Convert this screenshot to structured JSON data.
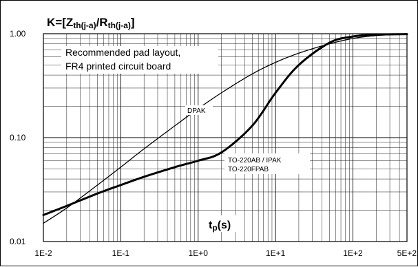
{
  "chart_data": {
    "type": "line",
    "title": {
      "main_prefix": "K=[Z",
      "sub1": "th(j-a)",
      "mid": "/R",
      "sub2": "th(j-a)",
      "suffix": "]"
    },
    "xlabel": {
      "main": "t",
      "sub": "p",
      "suffix": "(s)"
    },
    "ylabel": "",
    "x_scale": "log",
    "y_scale": "log",
    "xlim": [
      0.01,
      500
    ],
    "ylim": [
      0.01,
      1
    ],
    "x_ticks": [
      {
        "value": 0.01,
        "label": "1E-2"
      },
      {
        "value": 0.1,
        "label": "1E-1"
      },
      {
        "value": 1,
        "label": "1E+0"
      },
      {
        "value": 10,
        "label": "1E+1"
      },
      {
        "value": 100,
        "label": "1E+2"
      },
      {
        "value": 500,
        "label": "5E+2"
      }
    ],
    "y_ticks": [
      {
        "value": 0.01,
        "label": "0.01"
      },
      {
        "value": 0.1,
        "label": "0.10"
      },
      {
        "value": 1,
        "label": "1.00"
      }
    ],
    "grid": true,
    "notes": [
      "Recommended pad layout,",
      "FR4 printed circuit board"
    ],
    "series": [
      {
        "name": "DPAK",
        "style": "thin",
        "x": [
          0.01,
          0.02,
          0.05,
          0.1,
          0.2,
          0.5,
          1,
          2,
          5,
          10,
          20,
          50,
          100,
          200,
          500
        ],
        "y": [
          0.015,
          0.021,
          0.035,
          0.052,
          0.078,
          0.13,
          0.19,
          0.27,
          0.41,
          0.53,
          0.65,
          0.8,
          0.9,
          0.96,
          0.99
        ]
      },
      {
        "name": "TO-220AB / IPAK\nTO-220FPAB",
        "style": "thick",
        "x": [
          0.01,
          0.02,
          0.05,
          0.1,
          0.2,
          0.5,
          1,
          2,
          5,
          10,
          20,
          50,
          100,
          200,
          500
        ],
        "y": [
          0.018,
          0.022,
          0.029,
          0.035,
          0.042,
          0.052,
          0.06,
          0.072,
          0.13,
          0.27,
          0.5,
          0.82,
          0.94,
          0.98,
          0.99
        ]
      }
    ],
    "series_labels": [
      "DPAK",
      "TO-220AB / IPAK",
      "TO-220FPAB"
    ]
  }
}
